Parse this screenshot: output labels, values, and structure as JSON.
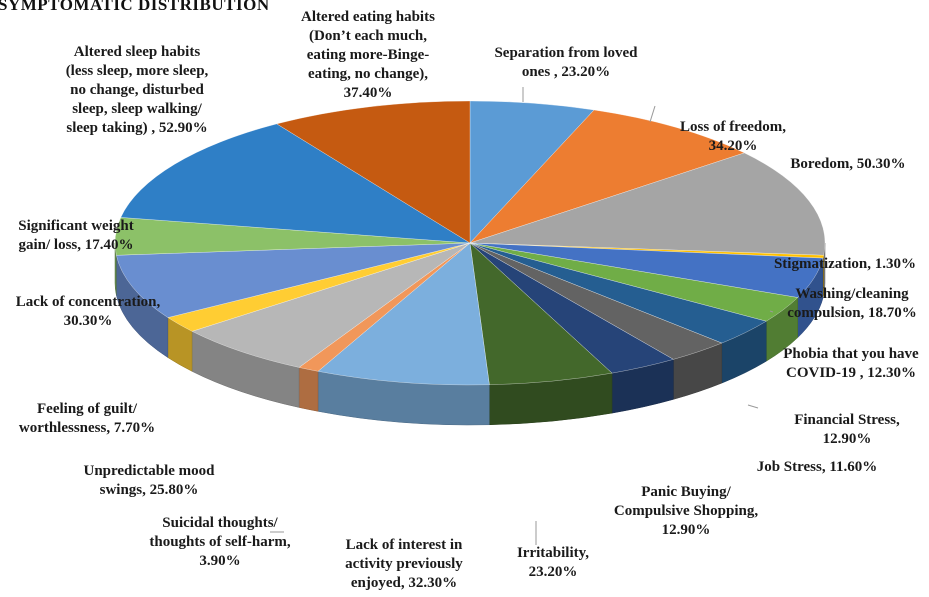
{
  "chart_data": {
    "type": "pie",
    "title": "SYMPTOMATIC DISTRIBUTION",
    "categories": [
      "Separation from loved ones",
      "Loss of freedom",
      "Boredom",
      "Stigmatization",
      "Washing/cleaning compulsion",
      "Phobia that you have COVID-19",
      "Financial Stress",
      "Job Stress",
      "Panic Buying/ Compulsive Shopping",
      "Irritability",
      "Lack of interest in activity previously enjoyed",
      "Suicidal thoughts/ thoughts of self-harm",
      "Unpredictable mood swings",
      "Feeling of guilt/ worthlessness",
      "Lack of concentration",
      "Significant weight gain/ loss",
      "Altered sleep habits (less sleep, more sleep, no change, disturbed sleep, sleep walking/ sleep taking)",
      "Altered eating habits (Don’t each much, eating more-Binge-eating, no change)"
    ],
    "values": [
      23.2,
      34.2,
      50.3,
      1.3,
      18.7,
      12.3,
      12.9,
      11.6,
      12.9,
      23.2,
      32.3,
      3.9,
      25.8,
      7.7,
      30.3,
      17.4,
      52.9,
      37.4
    ],
    "colors": [
      "#5b9bd5",
      "#ed7d31",
      "#a5a5a5",
      "#ffc000",
      "#4472c4",
      "#70ad47",
      "#255e91",
      "#636363",
      "#264478",
      "#43682b",
      "#7cafdd",
      "#f1975a",
      "#b7b7b7",
      "#ffcd33",
      "#698ed0",
      "#8cc168",
      "#2f7fc6",
      "#c55a11"
    ],
    "labels": [
      [
        "Separation from loved",
        "ones , 23.20%"
      ],
      [
        "Loss of freedom,",
        "34.20%"
      ],
      [
        "Boredom, 50.30%"
      ],
      [
        "Stigmatization, 1.30%"
      ],
      [
        "Washing/cleaning",
        "compulsion, 18.70%"
      ],
      [
        "Phobia that you have",
        "COVID-19 , 12.30%"
      ],
      [
        "Financial Stress,",
        "12.90%"
      ],
      [
        "Job Stress, 11.60%"
      ],
      [
        "Panic Buying/",
        "Compulsive Shopping,",
        "12.90%"
      ],
      [
        "Irritability,",
        "23.20%"
      ],
      [
        "Lack of interest in",
        "activity previously",
        "enjoyed, 32.30%"
      ],
      [
        "Suicidal thoughts/",
        "thoughts of self-harm,",
        "3.90%"
      ],
      [
        "Unpredictable mood",
        "swings, 25.80%"
      ],
      [
        "Feeling of guilt/",
        "worthlessness, 7.70%"
      ],
      [
        "Lack of concentration,",
        "30.30%"
      ],
      [
        "Significant weight",
        "gain/ loss, 17.40%"
      ],
      [
        "Altered sleep habits",
        "(less sleep, more sleep,",
        "no change, disturbed",
        "sleep, sleep walking/",
        "sleep taking) , 52.90%"
      ],
      [
        "Altered eating habits",
        "(Don’t each much,",
        "eating more-Binge-",
        "eating, no change),",
        "37.40%"
      ]
    ],
    "unit": "%",
    "legend": "none",
    "data_labels": "outside"
  }
}
